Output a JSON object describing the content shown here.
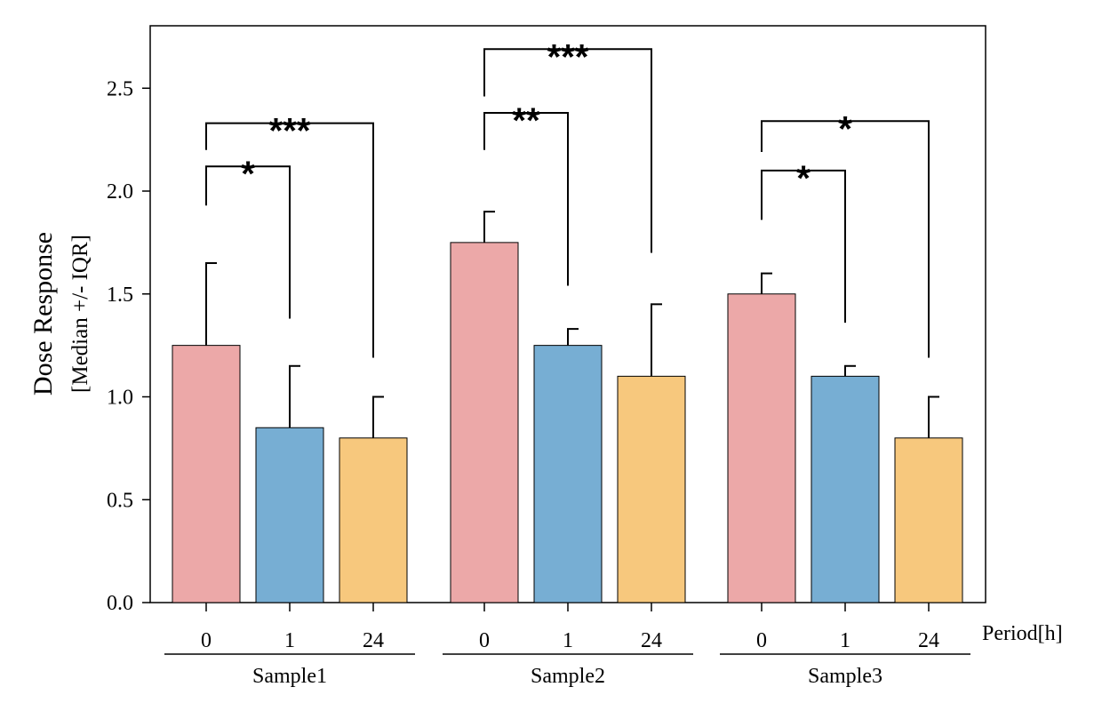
{
  "chart_data": {
    "type": "bar",
    "ylabel": "Dose Response",
    "ylabel_sub": "[Median +/- IQR]",
    "xlabel": "Period[h]",
    "ylim": [
      0,
      2.8
    ],
    "yticks": [
      0.0,
      0.5,
      1.0,
      1.5,
      2.0,
      2.5
    ],
    "ytick_labels": [
      "0.0",
      "0.5",
      "1.0",
      "1.5",
      "2.0",
      "2.5"
    ],
    "categories": [
      "0",
      "1",
      "24"
    ],
    "groups": [
      {
        "name": "Sample1",
        "values": [
          1.25,
          0.85,
          0.8
        ],
        "upper": [
          1.65,
          1.15,
          1.0
        ]
      },
      {
        "name": "Sample2",
        "values": [
          1.75,
          1.25,
          1.1
        ],
        "upper": [
          1.9,
          1.33,
          1.45
        ]
      },
      {
        "name": "Sample3",
        "values": [
          1.5,
          1.1,
          0.8
        ],
        "upper": [
          1.6,
          1.15,
          1.0
        ]
      }
    ],
    "colors": [
      "#eca8a8",
      "#77aed3",
      "#f7c87d"
    ],
    "significance": [
      {
        "group": 0,
        "from": 0,
        "to": 1,
        "y": 2.12,
        "left_y": 1.93,
        "right_y": 1.38,
        "label": "*"
      },
      {
        "group": 0,
        "from": 0,
        "to": 2,
        "y": 2.33,
        "left_y": 2.2,
        "right_y": 1.19,
        "label": "***"
      },
      {
        "group": 1,
        "from": 0,
        "to": 1,
        "y": 2.38,
        "left_y": 2.2,
        "right_y": 1.54,
        "label": "**"
      },
      {
        "group": 1,
        "from": 0,
        "to": 2,
        "y": 2.69,
        "left_y": 2.46,
        "right_y": 1.7,
        "label": "***"
      },
      {
        "group": 2,
        "from": 0,
        "to": 1,
        "y": 2.1,
        "left_y": 1.86,
        "right_y": 1.36,
        "label": "*"
      },
      {
        "group": 2,
        "from": 0,
        "to": 2,
        "y": 2.34,
        "left_y": 2.19,
        "right_y": 1.19,
        "label": "*"
      }
    ]
  }
}
